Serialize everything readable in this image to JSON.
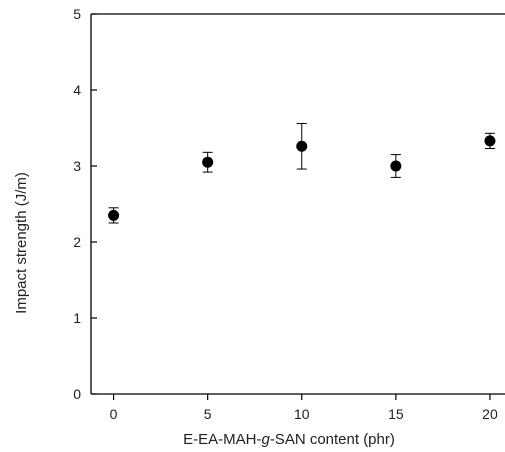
{
  "chart_data": {
    "type": "scatter",
    "title": "",
    "xlabel_parts": [
      "E-EA-MAH-",
      "g",
      "-SAN content (phr)"
    ],
    "ylabel": "Impact strength (J/m)",
    "xlim": [
      -1.2,
      20.8
    ],
    "ylim": [
      0,
      5
    ],
    "x_ticks": [
      0,
      5,
      10,
      15,
      20
    ],
    "y_ticks": [
      0,
      1,
      2,
      3,
      4,
      5
    ],
    "grid": false,
    "legend": "none",
    "series": [
      {
        "x": [
          0,
          5,
          10,
          15,
          20
        ],
        "y": [
          2.35,
          3.05,
          3.26,
          3.0,
          3.33
        ],
        "error": [
          0.1,
          0.13,
          0.3,
          0.15,
          0.1
        ]
      }
    ],
    "colors": {
      "marker": "#000000",
      "axis": "#000000",
      "text": "#222222"
    }
  }
}
